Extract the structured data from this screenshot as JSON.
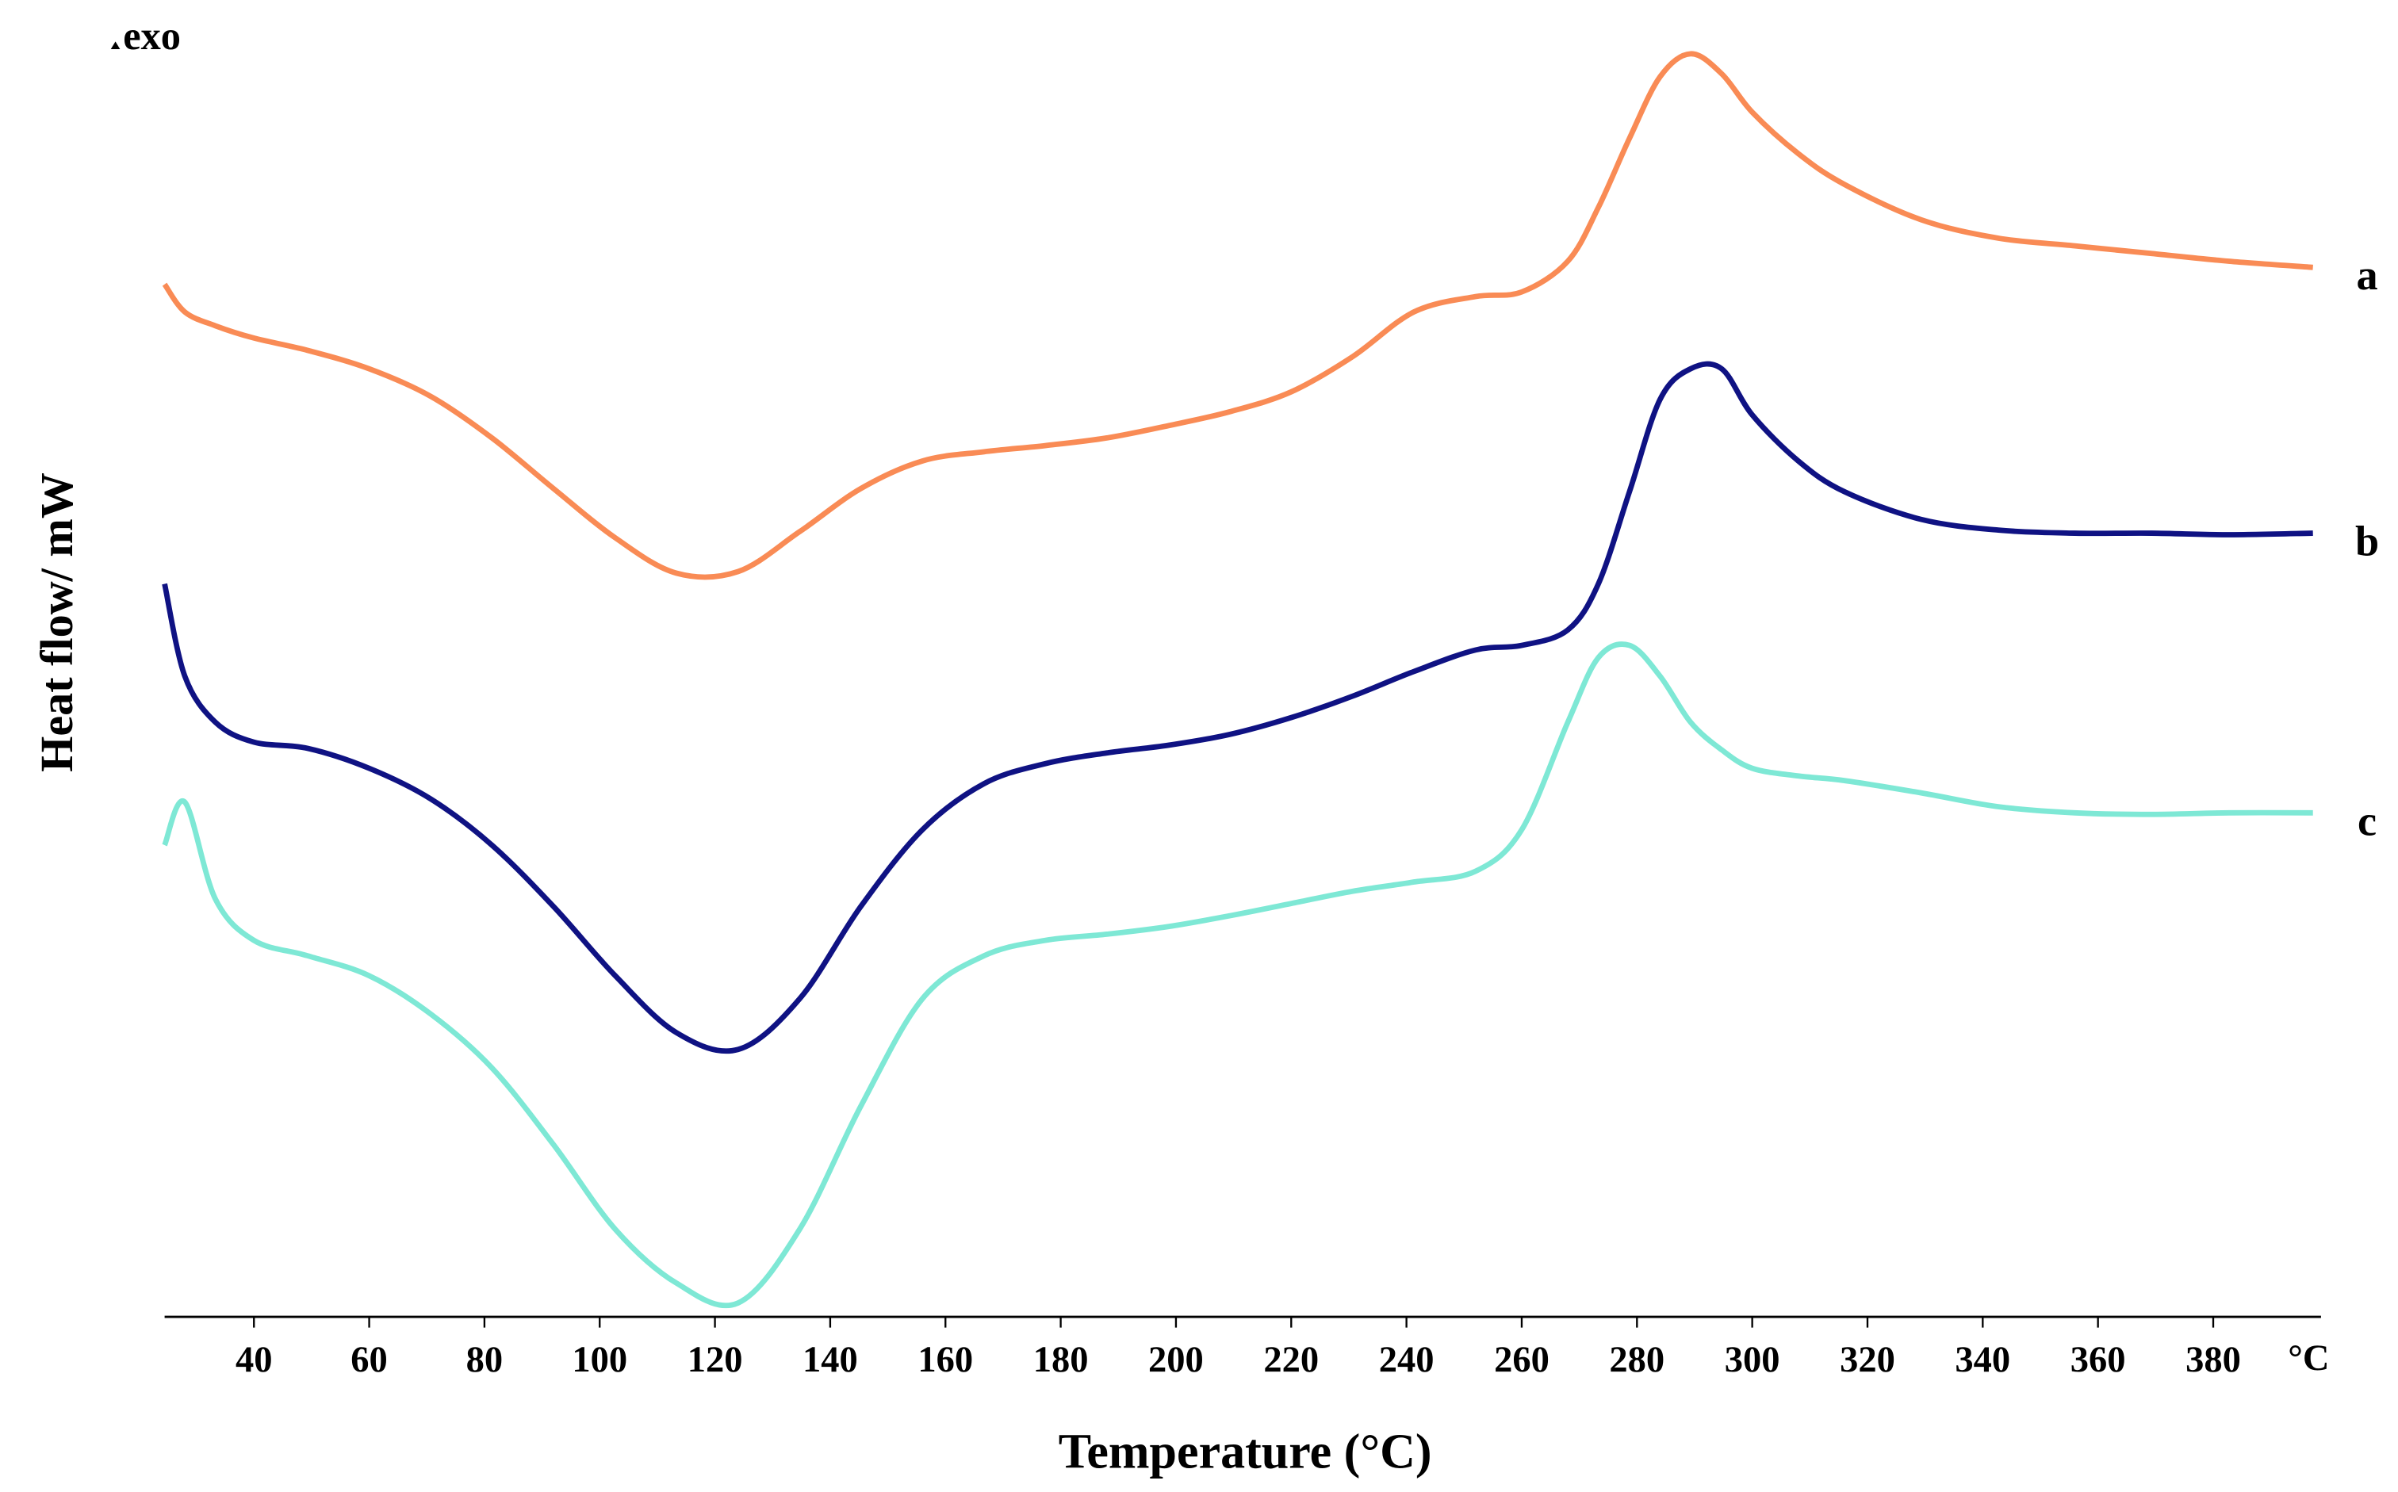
{
  "chart_data": {
    "type": "line",
    "title": "exo",
    "x_label": "Temperature (°C)",
    "y_label": "Heat flow/ mW",
    "x_unit": "°C",
    "xlim": [
      24.5,
      398.7
    ],
    "ylim": [
      0,
      830
    ],
    "xticks": [
      40,
      60,
      80,
      100,
      120,
      140,
      160,
      180,
      200,
      220,
      240,
      260,
      280,
      300,
      320,
      340,
      360,
      380
    ],
    "x": [
      24.5,
      28,
      33.3,
      40,
      49.3,
      60,
      70.7,
      81.3,
      92,
      102.7,
      113.3,
      124,
      134.7,
      145.3,
      156,
      166.7,
      177.3,
      188,
      198.7,
      209.3,
      220,
      230.7,
      241.3,
      252,
      260,
      268,
      273.3,
      278.7,
      284,
      289.3,
      294.7,
      300,
      308,
      316,
      329.3,
      342.7,
      356,
      369.3,
      382.7,
      397.3
    ],
    "series": [
      {
        "name": "a",
        "color": "#f98b55",
        "values": [
          672,
          654,
          645,
          637,
          629,
          617,
          599,
          572,
          539,
          507,
          484,
          485,
          511,
          539,
          557,
          563,
          567,
          572,
          580,
          589,
          602,
          625,
          654,
          664,
          667,
          687,
          722,
          767,
          807,
          822,
          809,
          784,
          757,
          737,
          714,
          702,
          697,
          692,
          687,
          683
        ]
      },
      {
        "name": "b",
        "color": "#0f1283",
        "values": [
          477,
          417,
          387,
          374,
          370,
          357,
          337,
          307,
          267,
          222,
          185,
          174,
          207,
          267,
          317,
          347,
          360,
          367,
          372,
          379,
          390,
          404,
          420,
          434,
          437,
          447,
          477,
          537,
          597,
          617,
          617,
          587,
          557,
          537,
          519,
          512,
          510,
          510,
          509,
          510
        ]
      },
      {
        "name": "c",
        "color": "#7ee8d5",
        "values": [
          307,
          335,
          272,
          245,
          235,
          222,
          197,
          162,
          112,
          57,
          22,
          9,
          57,
          137,
          207,
          235,
          245,
          249,
          254,
          261,
          269,
          277,
          283,
          290,
          317,
          387,
          429,
          437,
          417,
          387,
          369,
          357,
          352,
          349,
          341,
          332,
          328,
          327,
          328,
          328
        ]
      }
    ]
  }
}
